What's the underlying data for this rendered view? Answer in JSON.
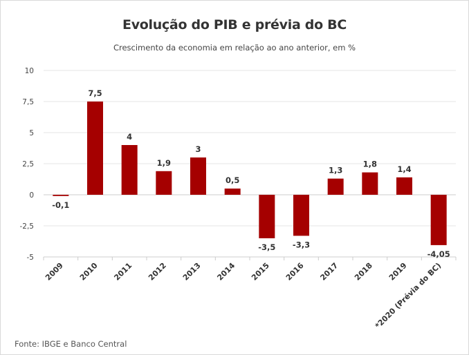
{
  "chart_data": {
    "type": "bar",
    "title": "Evolução do PIB e prévia do BC",
    "subtitle": "Crescimento da economia em relação ao ano anterior, em %",
    "source": "Fonte: IBGE e Banco Central",
    "categories": [
      "2009",
      "2010",
      "2011",
      "2012",
      "2013",
      "2014",
      "2015",
      "2016",
      "2017",
      "2018",
      "2019",
      "*2020 (Prévia do BC)"
    ],
    "values": [
      -0.1,
      7.5,
      4,
      1.9,
      3,
      0.5,
      -3.5,
      -3.3,
      1.3,
      1.8,
      1.4,
      -4.05
    ],
    "value_labels": [
      "-0,1",
      "7,5",
      "4",
      "1,9",
      "3",
      "0,5",
      "-3,5",
      "-3,3",
      "1,3",
      "1,8",
      "1,4",
      "-4,05"
    ],
    "yticks": [
      10,
      7.5,
      5,
      2.5,
      0,
      -2.5,
      -5
    ],
    "ytick_labels": [
      "10",
      "7,5",
      "5",
      "2,5",
      "0",
      "-2,5",
      "-5"
    ],
    "ylim": [
      -5,
      10
    ],
    "xlabel": "",
    "ylabel": "",
    "grid": true,
    "legend": "none",
    "colors": {
      "bar": "#a50000",
      "grid": "#e6e6e6",
      "axis": "#cccccc"
    }
  }
}
